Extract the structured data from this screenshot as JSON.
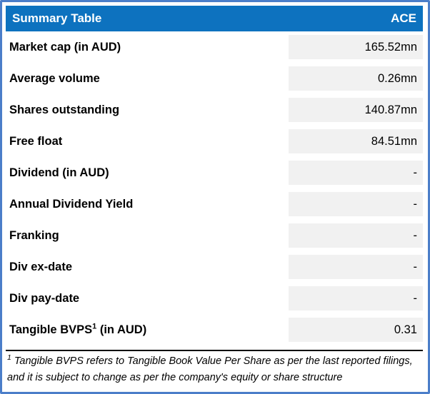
{
  "header": {
    "title": "Summary Table",
    "ticker": "ACE"
  },
  "rows": [
    {
      "label": "Market cap (in AUD)",
      "sup": "",
      "suffix": "",
      "value": "165.52mn"
    },
    {
      "label": "Average volume",
      "sup": "",
      "suffix": "",
      "value": "0.26mn"
    },
    {
      "label": "Shares outstanding",
      "sup": "",
      "suffix": "",
      "value": "140.87mn"
    },
    {
      "label": "Free float",
      "sup": "",
      "suffix": "",
      "value": "84.51mn"
    },
    {
      "label": "Dividend (in AUD)",
      "sup": "",
      "suffix": "",
      "value": "-"
    },
    {
      "label": "Annual Dividend Yield",
      "sup": "",
      "suffix": "",
      "value": "-"
    },
    {
      "label": "Franking",
      "sup": "",
      "suffix": "",
      "value": "-"
    },
    {
      "label": "Div ex-date",
      "sup": "",
      "suffix": "",
      "value": "-"
    },
    {
      "label": "Div pay-date",
      "sup": "",
      "suffix": "",
      "value": "-"
    },
    {
      "label": "Tangible BVPS",
      "sup": "1",
      "suffix": " (in AUD)",
      "value": "0.31"
    }
  ],
  "footnote": {
    "sup": "1",
    "text": " Tangible BVPS refers to Tangible Book Value Per Share as per the last reported filings, and it is subject to change as per the company's equity or share structure"
  },
  "colors": {
    "header_bg": "#0d72bf",
    "border_blue": "#4b7ec9",
    "value_cell_bg": "#f1f1f1",
    "text": "#000000"
  }
}
